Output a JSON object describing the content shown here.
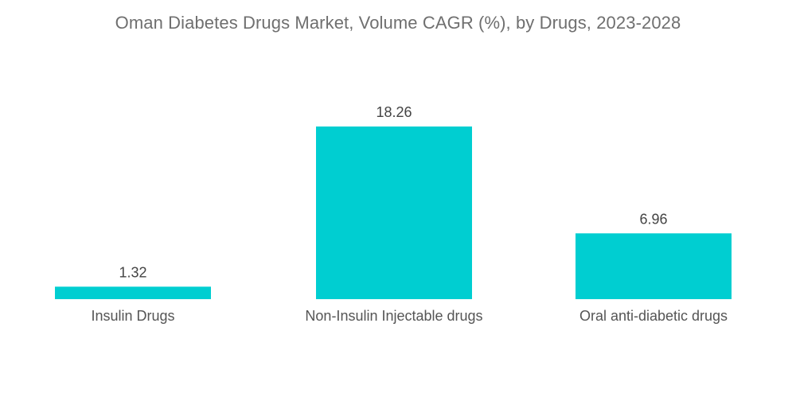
{
  "chart_data": {
    "type": "bar",
    "title": "Oman Diabetes Drugs Market, Volume CAGR (%), by Drugs, 2023-2028",
    "categories": [
      "Insulin Drugs",
      "Non-Insulin Injectable drugs",
      "Oral anti-diabetic drugs"
    ],
    "values": [
      1.32,
      18.26,
      6.96
    ],
    "value_labels": [
      "1.32",
      "18.26",
      "6.96"
    ],
    "xlabel": "",
    "ylabel": "",
    "ylim": [
      0,
      18.26
    ],
    "grid": false,
    "legend": "none",
    "bar_color": "#00ced1"
  },
  "colors": {
    "bar": "#00ced1",
    "title": "#6f6f6f",
    "label": "#444444"
  }
}
